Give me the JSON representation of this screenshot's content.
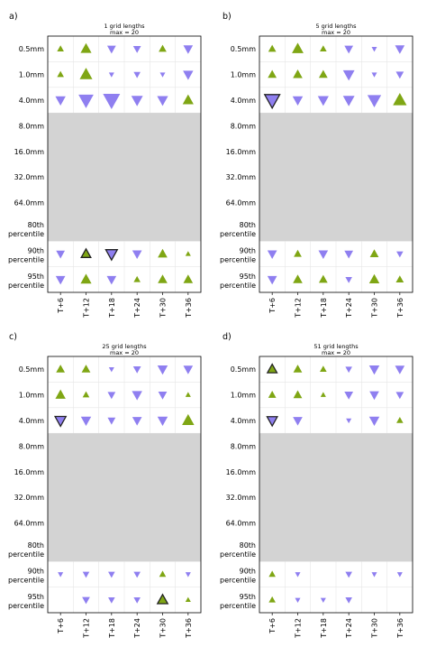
{
  "colors": {
    "up": "#7fa614",
    "down": "#8f7ff0",
    "outline": "#222222",
    "mask": "#d3d3d3",
    "grid": "#e6e6e6"
  },
  "legend": {
    "meaning": "upward triangle = positive value, downward triangle = negative value; triangle size = magnitude; dark outline = highlighted cell"
  },
  "chart_data": [
    {
      "panel": "a)",
      "type": "glyph-grid",
      "title": "1 grid lengths",
      "subtitle": "max = 20",
      "max": 20,
      "rows": [
        "0.5mm",
        "1.0mm",
        "4.0mm",
        "8.0mm",
        "16.0mm",
        "32.0mm",
        "64.0mm",
        "80th percentile",
        "90th percentile",
        "95th percentile"
      ],
      "cols": [
        "T+6",
        "T+12",
        "T+18",
        "T+24",
        "T+30",
        "T+36"
      ],
      "masked_rows": [
        "8.0mm",
        "16.0mm",
        "32.0mm",
        "64.0mm",
        "80th percentile"
      ],
      "values": [
        [
          2,
          7,
          -4,
          -3,
          3,
          -5
        ],
        [
          2,
          10,
          -1,
          -2,
          -1,
          -6
        ],
        [
          -6,
          -15,
          -20,
          -8,
          -7,
          7
        ],
        null,
        null,
        null,
        null,
        null,
        [
          -4,
          5,
          -8,
          -5,
          5,
          1
        ],
        [
          -5,
          7,
          -5,
          2,
          5,
          5
        ]
      ],
      "outlined": [
        [
          8,
          1
        ],
        [
          8,
          2
        ]
      ]
    },
    {
      "panel": "b)",
      "type": "glyph-grid",
      "title": "5 grid lengths",
      "subtitle": "max = 20",
      "max": 20,
      "rows": [
        "0.5mm",
        "1.0mm",
        "4.0mm",
        "8.0mm",
        "16.0mm",
        "32.0mm",
        "64.0mm",
        "80th percentile",
        "90th percentile",
        "95th percentile"
      ],
      "cols": [
        "T+6",
        "T+12",
        "T+18",
        "T+24",
        "T+30",
        "T+36"
      ],
      "masked_rows": [
        "8.0mm",
        "16.0mm",
        "32.0mm",
        "64.0mm",
        "80th percentile"
      ],
      "values": [
        [
          3,
          8,
          2,
          -4,
          -1,
          -5
        ],
        [
          4,
          5,
          4,
          -8,
          -1,
          -3
        ],
        [
          -15,
          -6,
          -7,
          -8,
          -12,
          12
        ],
        null,
        null,
        null,
        null,
        null,
        [
          -5,
          3,
          -5,
          -4,
          4,
          -2
        ],
        [
          -5,
          5,
          4,
          -2,
          6,
          3
        ]
      ],
      "outlined": [
        [
          2,
          0
        ]
      ]
    },
    {
      "panel": "c)",
      "type": "glyph-grid",
      "title": "25 grid lengths",
      "subtitle": "max = 20",
      "max": 20,
      "rows": [
        "0.5mm",
        "1.0mm",
        "4.0mm",
        "8.0mm",
        "16.0mm",
        "32.0mm",
        "64.0mm",
        "80th percentile",
        "90th percentile",
        "95th percentile"
      ],
      "cols": [
        "T+6",
        "T+12",
        "T+18",
        "T+24",
        "T+30",
        "T+36"
      ],
      "masked_rows": [
        "8.0mm",
        "16.0mm",
        "32.0mm",
        "64.0mm",
        "80th percentile"
      ],
      "values": [
        [
          4,
          4,
          -1,
          -3,
          -6,
          -5
        ],
        [
          6,
          2,
          -3,
          -6,
          -4,
          1
        ],
        [
          -7,
          -6,
          -3,
          -5,
          -6,
          9
        ],
        null,
        null,
        null,
        null,
        null,
        [
          -1,
          -2,
          -2,
          -2,
          2,
          -1
        ],
        [
          0,
          -3,
          -2,
          -2,
          6,
          1
        ]
      ],
      "outlined": [
        [
          2,
          0
        ],
        [
          9,
          4
        ]
      ]
    },
    {
      "panel": "d)",
      "type": "glyph-grid",
      "title": "51 grid lengths",
      "subtitle": "max = 20",
      "max": 20,
      "rows": [
        "0.5mm",
        "1.0mm",
        "4.0mm",
        "8.0mm",
        "16.0mm",
        "32.0mm",
        "64.0mm",
        "80th percentile",
        "90th percentile",
        "95th percentile"
      ],
      "cols": [
        "T+6",
        "T+12",
        "T+18",
        "T+24",
        "T+30",
        "T+36"
      ],
      "masked_rows": [
        "8.0mm",
        "16.0mm",
        "32.0mm",
        "64.0mm",
        "80th percentile"
      ],
      "values": [
        [
          5,
          4,
          2,
          -2,
          -6,
          -5
        ],
        [
          3,
          4,
          1,
          -4,
          -5,
          -3
        ],
        [
          -6,
          -5,
          0,
          -1,
          -6,
          2
        ],
        null,
        null,
        null,
        null,
        null,
        [
          2,
          -1,
          0,
          -2,
          -1,
          -1
        ],
        [
          2,
          -1,
          -1,
          -2,
          0,
          0
        ]
      ],
      "outlined": [
        [
          0,
          0
        ],
        [
          2,
          0
        ]
      ]
    }
  ]
}
